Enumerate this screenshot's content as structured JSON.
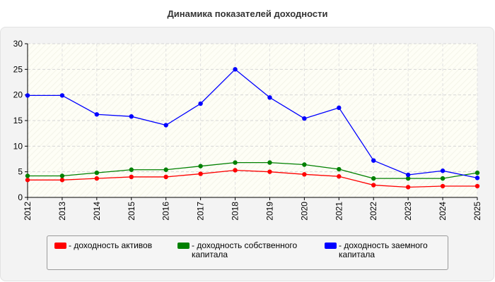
{
  "page_title": "Динамика показателей доходности",
  "chart_data": {
    "type": "line",
    "title": "Динамика показателей доходности",
    "xlabel": "",
    "ylabel": "",
    "categories": [
      "2012",
      "2013",
      "2014",
      "2015",
      "2016",
      "2017",
      "2018",
      "2019",
      "2020",
      "2021",
      "2022",
      "2023",
      "2024",
      "2025"
    ],
    "ylim": [
      0,
      30
    ],
    "yticks": [
      0,
      5,
      10,
      15,
      20,
      25,
      30
    ],
    "grid": true,
    "legend_position": "bottom",
    "series": [
      {
        "name": "- доходность активов",
        "color": "#ff0000",
        "values": [
          3.4,
          3.4,
          3.7,
          4.0,
          4.0,
          4.6,
          5.3,
          5.0,
          4.5,
          4.1,
          2.4,
          2.0,
          2.2,
          2.2
        ]
      },
      {
        "name": "- доходность собственного капитала",
        "color": "#008000",
        "values": [
          4.2,
          4.2,
          4.8,
          5.4,
          5.4,
          6.1,
          6.8,
          6.8,
          6.4,
          5.5,
          3.7,
          3.7,
          3.7,
          4.8
        ]
      },
      {
        "name": "- доходность заемного капитала",
        "color": "#0000ff",
        "values": [
          19.9,
          19.9,
          16.2,
          15.8,
          14.1,
          18.3,
          25.0,
          19.5,
          15.4,
          17.5,
          7.2,
          4.4,
          5.2,
          3.8
        ]
      }
    ]
  }
}
